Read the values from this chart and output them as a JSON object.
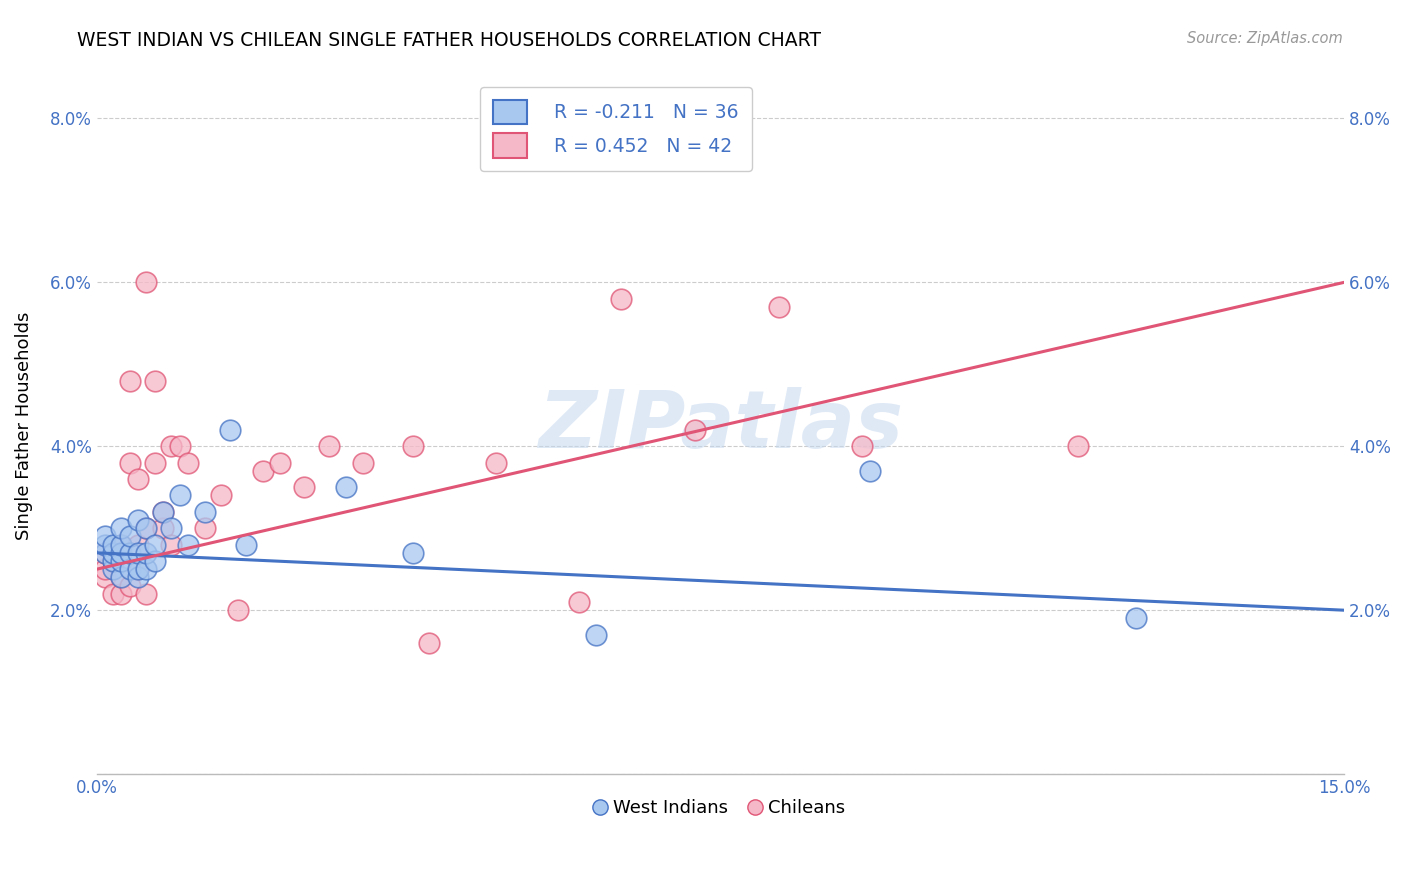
{
  "title": "WEST INDIAN VS CHILEAN SINGLE FATHER HOUSEHOLDS CORRELATION CHART",
  "source": "Source: ZipAtlas.com",
  "ylabel": "Single Father Households",
  "xlim": [
    0.0,
    0.15
  ],
  "ylim": [
    0.0,
    0.085
  ],
  "xticks": [
    0.0,
    0.025,
    0.05,
    0.075,
    0.1,
    0.125,
    0.15
  ],
  "xticklabels": [
    "0.0%",
    "",
    "",
    "",
    "",
    "",
    "15.0%"
  ],
  "yticks": [
    0.0,
    0.02,
    0.04,
    0.06,
    0.08
  ],
  "yticklabels_left": [
    "",
    "2.0%",
    "4.0%",
    "6.0%",
    "8.0%"
  ],
  "yticklabels_right": [
    "",
    "2.0%",
    "4.0%",
    "6.0%",
    "8.0%"
  ],
  "legend_labels": [
    "West Indians",
    "Chileans"
  ],
  "legend_R": [
    "R = -0.211",
    "R = 0.452"
  ],
  "legend_N": [
    "N = 36",
    "N = 42"
  ],
  "blue_scatter_color": "#a8c8f0",
  "pink_scatter_color": "#f5b8c8",
  "blue_line_color": "#4472c4",
  "pink_line_color": "#e05575",
  "tick_color": "#4472c4",
  "grid_color": "#cccccc",
  "watermark_text": "ZIPatlas",
  "watermark_color": "#c5d8f0",
  "west_indian_x": [
    0.001,
    0.001,
    0.001,
    0.002,
    0.002,
    0.002,
    0.002,
    0.003,
    0.003,
    0.003,
    0.003,
    0.003,
    0.004,
    0.004,
    0.004,
    0.005,
    0.005,
    0.005,
    0.005,
    0.006,
    0.006,
    0.006,
    0.007,
    0.007,
    0.008,
    0.009,
    0.01,
    0.011,
    0.013,
    0.016,
    0.018,
    0.03,
    0.038,
    0.06,
    0.093,
    0.125
  ],
  "west_indian_y": [
    0.027,
    0.028,
    0.029,
    0.025,
    0.026,
    0.027,
    0.028,
    0.024,
    0.026,
    0.027,
    0.028,
    0.03,
    0.025,
    0.027,
    0.029,
    0.024,
    0.025,
    0.027,
    0.031,
    0.025,
    0.027,
    0.03,
    0.026,
    0.028,
    0.032,
    0.03,
    0.034,
    0.028,
    0.032,
    0.042,
    0.028,
    0.035,
    0.027,
    0.017,
    0.037,
    0.019
  ],
  "chilean_x": [
    0.001,
    0.001,
    0.001,
    0.002,
    0.002,
    0.003,
    0.003,
    0.003,
    0.004,
    0.004,
    0.004,
    0.005,
    0.005,
    0.005,
    0.006,
    0.006,
    0.006,
    0.007,
    0.007,
    0.008,
    0.008,
    0.009,
    0.009,
    0.01,
    0.011,
    0.013,
    0.015,
    0.017,
    0.02,
    0.022,
    0.025,
    0.028,
    0.032,
    0.038,
    0.04,
    0.048,
    0.058,
    0.063,
    0.072,
    0.082,
    0.092,
    0.118
  ],
  "chilean_y": [
    0.024,
    0.025,
    0.027,
    0.022,
    0.026,
    0.022,
    0.024,
    0.028,
    0.023,
    0.038,
    0.048,
    0.025,
    0.028,
    0.036,
    0.022,
    0.03,
    0.06,
    0.038,
    0.048,
    0.03,
    0.032,
    0.028,
    0.04,
    0.04,
    0.038,
    0.03,
    0.034,
    0.02,
    0.037,
    0.038,
    0.035,
    0.04,
    0.038,
    0.04,
    0.016,
    0.038,
    0.021,
    0.058,
    0.042,
    0.057,
    0.04,
    0.04
  ],
  "wi_line_x0": 0.0,
  "wi_line_y0": 0.027,
  "wi_line_x1": 0.15,
  "wi_line_y1": 0.02,
  "ch_line_x0": 0.0,
  "ch_line_y0": 0.025,
  "ch_line_x1": 0.15,
  "ch_line_y1": 0.06
}
